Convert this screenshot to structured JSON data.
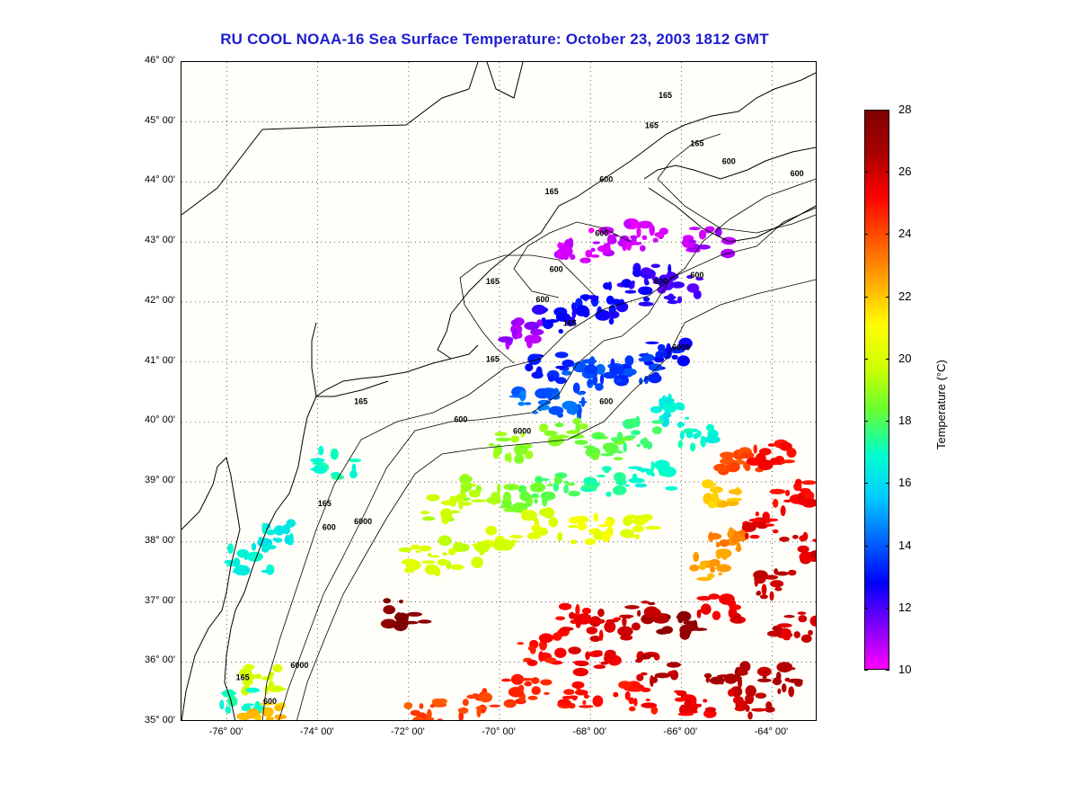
{
  "title": "RU COOL  NOAA-16  Sea Surface Temperature:  October 23, 2003 1812 GMT",
  "map": {
    "lat_labels": [
      "46° 00'",
      "45° 00'",
      "44° 00'",
      "43° 00'",
      "42° 00'",
      "41° 00'",
      "40° 00'",
      "39° 00'",
      "38° 00'",
      "37° 00'",
      "36° 00'",
      "35° 00'"
    ],
    "lon_labels": [
      "-76° 00'",
      "-74° 00'",
      "-72° 00'",
      "-70° 00'",
      "-68° 00'",
      "-66° 00'",
      "-64° 00'"
    ],
    "lat_range": [
      35,
      46
    ],
    "lon_range": [
      -77,
      -63
    ],
    "isobath_labels": [
      "165",
      "600",
      "6000"
    ]
  },
  "colorbar": {
    "label": "Temperature (°C)",
    "ticks": [
      "28",
      "26",
      "24",
      "22",
      "20",
      "18",
      "16",
      "14",
      "12",
      "10"
    ],
    "min": 10,
    "max": 28,
    "colors": [
      "#ff00ff",
      "#7f00ff",
      "#0000ff",
      "#0066ff",
      "#00ccff",
      "#00ffcc",
      "#66ff33",
      "#ccff00",
      "#ffff00",
      "#ffaa00",
      "#ff5500",
      "#ff0000",
      "#aa0000",
      "#7f0000"
    ]
  },
  "colors": {
    "title": "#1d1dd0",
    "land_bg": "#fffef9",
    "coast": "#000000"
  },
  "sst_patches": [
    {
      "lon": -66.8,
      "lat": 43.1,
      "t": 10.5
    },
    {
      "lon": -65.4,
      "lat": 43.0,
      "t": 10.8
    },
    {
      "lon": -67.6,
      "lat": 43.0,
      "t": 10.4
    },
    {
      "lon": -68.3,
      "lat": 42.9,
      "t": 10.6
    },
    {
      "lon": -66.6,
      "lat": 42.4,
      "t": 12.2
    },
    {
      "lon": -66.0,
      "lat": 42.2,
      "t": 12.1
    },
    {
      "lon": -67.2,
      "lat": 42.1,
      "t": 12.5
    },
    {
      "lon": -67.8,
      "lat": 41.9,
      "t": 12.8
    },
    {
      "lon": -68.8,
      "lat": 41.7,
      "t": 12.6
    },
    {
      "lon": -69.5,
      "lat": 41.5,
      "t": 11.0
    },
    {
      "lon": -66.3,
      "lat": 41.1,
      "t": 12.9
    },
    {
      "lon": -66.9,
      "lat": 40.9,
      "t": 13.4
    },
    {
      "lon": -67.6,
      "lat": 40.8,
      "t": 13.6
    },
    {
      "lon": -68.2,
      "lat": 40.7,
      "t": 13.8
    },
    {
      "lon": -68.9,
      "lat": 40.9,
      "t": 13.0
    },
    {
      "lon": -68.5,
      "lat": 40.3,
      "t": 14.0
    },
    {
      "lon": -69.2,
      "lat": 40.3,
      "t": 14.2
    },
    {
      "lon": -66.2,
      "lat": 40.2,
      "t": 16.5
    },
    {
      "lon": -65.7,
      "lat": 39.8,
      "t": 16.8
    },
    {
      "lon": -66.8,
      "lat": 39.8,
      "t": 17.5
    },
    {
      "lon": -67.6,
      "lat": 39.6,
      "t": 18.2
    },
    {
      "lon": -68.6,
      "lat": 39.8,
      "t": 18.6
    },
    {
      "lon": -69.8,
      "lat": 39.6,
      "t": 19.0
    },
    {
      "lon": -66.6,
      "lat": 39.1,
      "t": 16.8
    },
    {
      "lon": -67.6,
      "lat": 39.0,
      "t": 17.2
    },
    {
      "lon": -68.8,
      "lat": 38.9,
      "t": 17.9
    },
    {
      "lon": -69.6,
      "lat": 38.7,
      "t": 18.4
    },
    {
      "lon": -70.4,
      "lat": 38.9,
      "t": 19.2
    },
    {
      "lon": -71.2,
      "lat": 38.6,
      "t": 19.6
    },
    {
      "lon": -67.0,
      "lat": 38.3,
      "t": 20.4
    },
    {
      "lon": -68.0,
      "lat": 38.2,
      "t": 20.6
    },
    {
      "lon": -69.0,
      "lat": 38.3,
      "t": 20.2
    },
    {
      "lon": -70.0,
      "lat": 38.0,
      "t": 20.0
    },
    {
      "lon": -70.8,
      "lat": 37.8,
      "t": 19.8
    },
    {
      "lon": -71.7,
      "lat": 37.7,
      "t": 20.1
    },
    {
      "lon": -65.0,
      "lat": 38.8,
      "t": 22.0
    },
    {
      "lon": -64.7,
      "lat": 39.3,
      "t": 24.0
    },
    {
      "lon": -64.0,
      "lat": 39.5,
      "t": 25.0
    },
    {
      "lon": -64.9,
      "lat": 38.0,
      "t": 23.0
    },
    {
      "lon": -65.3,
      "lat": 37.6,
      "t": 22.5
    },
    {
      "lon": -64.2,
      "lat": 38.3,
      "t": 25.5
    },
    {
      "lon": -63.5,
      "lat": 38.8,
      "t": 25.2
    },
    {
      "lon": -63.3,
      "lat": 37.9,
      "t": 25.8
    },
    {
      "lon": -64.0,
      "lat": 37.3,
      "t": 26.2
    },
    {
      "lon": -63.5,
      "lat": 36.6,
      "t": 26.0
    },
    {
      "lon": -65.2,
      "lat": 36.9,
      "t": 25.6
    },
    {
      "lon": -66.0,
      "lat": 36.6,
      "t": 27.5
    },
    {
      "lon": -66.8,
      "lat": 36.8,
      "t": 26.4
    },
    {
      "lon": -67.6,
      "lat": 36.6,
      "t": 25.8
    },
    {
      "lon": -68.4,
      "lat": 36.7,
      "t": 25.4
    },
    {
      "lon": -69.1,
      "lat": 36.2,
      "t": 25.0
    },
    {
      "lon": -67.9,
      "lat": 36.0,
      "t": 25.6
    },
    {
      "lon": -66.5,
      "lat": 35.9,
      "t": 26.3
    },
    {
      "lon": -65.0,
      "lat": 35.8,
      "t": 26.6
    },
    {
      "lon": -63.8,
      "lat": 35.7,
      "t": 26.4
    },
    {
      "lon": -64.5,
      "lat": 35.3,
      "t": 26.0
    },
    {
      "lon": -65.8,
      "lat": 35.3,
      "t": 25.5
    },
    {
      "lon": -67.0,
      "lat": 35.4,
      "t": 25.1
    },
    {
      "lon": -68.2,
      "lat": 35.4,
      "t": 24.8
    },
    {
      "lon": -69.4,
      "lat": 35.5,
      "t": 24.6
    },
    {
      "lon": -70.5,
      "lat": 35.3,
      "t": 24.3
    },
    {
      "lon": -71.6,
      "lat": 35.2,
      "t": 24.0
    },
    {
      "lon": -72.1,
      "lat": 36.8,
      "t": 27.8
    },
    {
      "lon": -75.3,
      "lat": 35.7,
      "t": 20.0
    },
    {
      "lon": -75.7,
      "lat": 35.4,
      "t": 17.0
    },
    {
      "lon": -75.2,
      "lat": 35.1,
      "t": 22.0
    },
    {
      "lon": -74.9,
      "lat": 38.1,
      "t": 16.4
    },
    {
      "lon": -73.6,
      "lat": 39.3,
      "t": 17.0
    },
    {
      "lon": -75.5,
      "lat": 37.7,
      "t": 16.6
    }
  ],
  "isobath_label_positions": [
    {
      "text": "165",
      "lon": -66.8,
      "lat": 44.9
    },
    {
      "text": "165",
      "lon": -65.8,
      "lat": 44.6
    },
    {
      "text": "165",
      "lon": -69.0,
      "lat": 43.8
    },
    {
      "text": "165",
      "lon": -70.3,
      "lat": 42.3
    },
    {
      "text": "165",
      "lon": -68.6,
      "lat": 41.6
    },
    {
      "text": "165",
      "lon": -70.3,
      "lat": 41.0
    },
    {
      "text": "165",
      "lon": -73.2,
      "lat": 40.3
    },
    {
      "text": "165",
      "lon": -74.0,
      "lat": 38.6
    },
    {
      "text": "165",
      "lon": -75.8,
      "lat": 35.7
    },
    {
      "text": "165",
      "lon": -66.5,
      "lat": 45.4
    },
    {
      "text": "600",
      "lon": -67.8,
      "lat": 44.0
    },
    {
      "text": "600",
      "lon": -65.1,
      "lat": 44.3
    },
    {
      "text": "600",
      "lon": -63.6,
      "lat": 44.1
    },
    {
      "text": "600",
      "lon": -67.9,
      "lat": 43.1
    },
    {
      "text": "600",
      "lon": -68.9,
      "lat": 42.5
    },
    {
      "text": "600",
      "lon": -69.2,
      "lat": 42.0
    },
    {
      "text": "600",
      "lon": -66.6,
      "lat": 42.3
    },
    {
      "text": "600",
      "lon": -71.0,
      "lat": 40.0
    },
    {
      "text": "600",
      "lon": -73.9,
      "lat": 38.2
    },
    {
      "text": "600",
      "lon": -75.2,
      "lat": 35.3
    },
    {
      "text": "600",
      "lon": -67.8,
      "lat": 40.3
    },
    {
      "text": "6000",
      "lon": -69.7,
      "lat": 39.8
    },
    {
      "text": "6000",
      "lon": -66.2,
      "lat": 41.2
    },
    {
      "text": "6000",
      "lon": -73.2,
      "lat": 38.3
    },
    {
      "text": "6000",
      "lon": -74.6,
      "lat": 35.9
    },
    {
      "text": "600",
      "lon": -65.8,
      "lat": 42.4
    }
  ]
}
